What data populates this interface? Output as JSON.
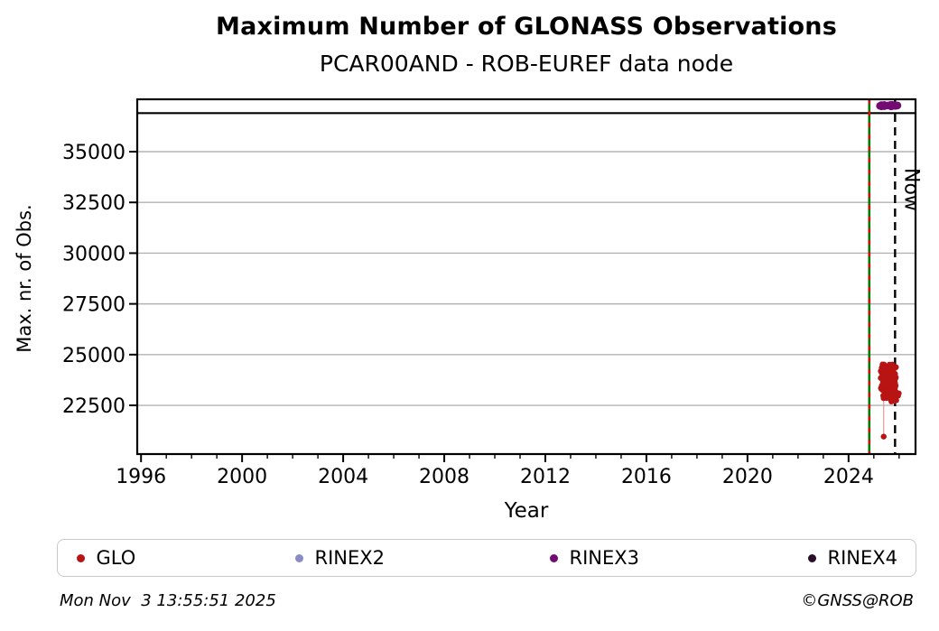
{
  "header": {
    "title": "Maximum Number of GLONASS Observations",
    "subtitle": "PCAR00AND - ROB-EUREF data node"
  },
  "chart_data": {
    "type": "scatter",
    "title": "Maximum Number of GLONASS Observations",
    "subtitle": "PCAR00AND - ROB-EUREF data node",
    "xlabel": "Year",
    "ylabel": "Max. nr. of Obs.",
    "xlim": [
      1995.85,
      2026.65
    ],
    "ylim": [
      20100,
      37580
    ],
    "xticks_major": [
      1996,
      2000,
      2004,
      2008,
      2012,
      2016,
      2020,
      2024
    ],
    "xticks_minor_range": [
      1996,
      2026
    ],
    "yticks": [
      22500,
      25000,
      27500,
      30000,
      32500,
      35000
    ],
    "grid": "horizontal",
    "grid_color": "#b3b3b3",
    "top_line_value": 36900,
    "series": [
      {
        "name": "GLO",
        "color": "#b81414",
        "marker_r": 3.2,
        "clusters": [
          {
            "x": [
              2025.27,
              2025.88
            ],
            "y": [
              23250,
              24520
            ],
            "count": 130,
            "r": 3.2
          },
          {
            "x": [
              2025.36,
              2025.62
            ],
            "y": [
              22800,
              23270
            ],
            "count": 22,
            "r": 3.0
          },
          {
            "x": [
              2025.66,
              2026.0
            ],
            "y": [
              22660,
              23230
            ],
            "count": 26,
            "r": 3.0
          }
        ],
        "points": [
          [
            2025.39,
            20960
          ]
        ],
        "connector": [
          [
            2025.39,
            22800
          ],
          [
            2025.39,
            20960
          ]
        ],
        "connector_color": "#e09a9a"
      },
      {
        "name": "RINEX2",
        "color": "#8a8cc8",
        "marker_r": 4.3,
        "clusters": [],
        "points": []
      },
      {
        "name": "RINEX3",
        "color": "#730b73",
        "marker_r": 4.3,
        "clusters": [
          {
            "x": [
              2025.22,
              2025.94
            ],
            "y": [
              37230,
              37310
            ],
            "count": 18,
            "r": 4.3
          }
        ],
        "points": []
      },
      {
        "name": "RINEX4",
        "color": "#2a0e2a",
        "marker_r": 4.3,
        "clusters": [],
        "points": []
      }
    ],
    "annotations": {
      "start_line": {
        "x": 2024.82,
        "solid_color": "#007d00",
        "dash_color": "#cf0f0f"
      },
      "now_line": {
        "x": 2025.84,
        "label": "Now",
        "color": "#000000"
      }
    },
    "legend_position": "bottom"
  },
  "legend": {
    "items": [
      {
        "label": "GLO",
        "color": "#b81414"
      },
      {
        "label": "RINEX2",
        "color": "#8a8cc8"
      },
      {
        "label": "RINEX3",
        "color": "#730b73"
      },
      {
        "label": "RINEX4",
        "color": "#2a0e2a"
      }
    ]
  },
  "footer": {
    "timestamp": "Mon Nov  3 13:55:51 2025",
    "credit": "©GNSS@ROB"
  }
}
